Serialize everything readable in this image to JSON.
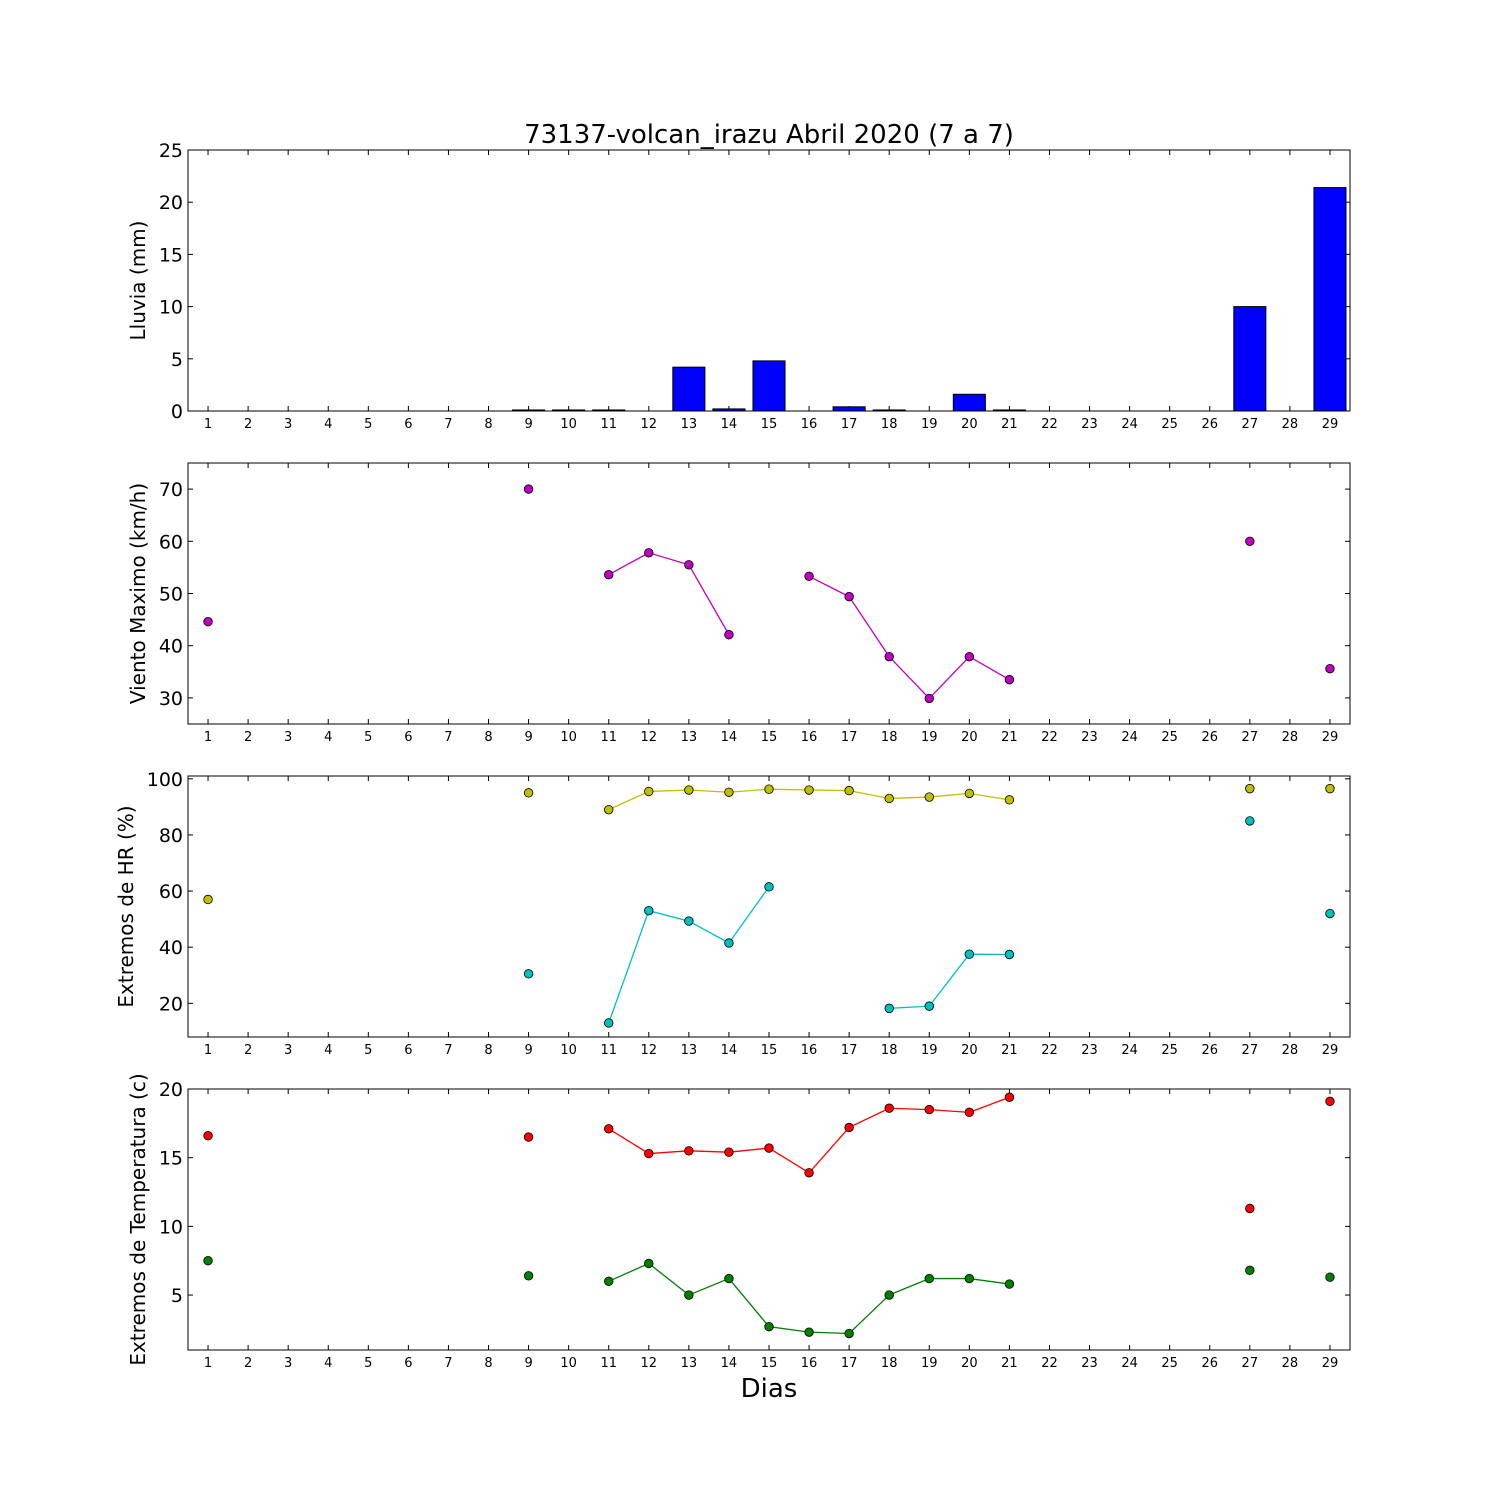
{
  "title": "73137-volcan_irazu Abril 2020  (7 a 7)",
  "x_axis_label": "Dias",
  "chart_data": [
    {
      "type": "bar",
      "ylabel": "Lluvia (mm)",
      "ylim": [
        0,
        25
      ],
      "yticks": [
        0,
        5,
        10,
        15,
        20,
        25
      ],
      "xticks": [
        1,
        2,
        3,
        4,
        5,
        6,
        7,
        8,
        9,
        10,
        11,
        12,
        13,
        14,
        15,
        16,
        17,
        18,
        19,
        20,
        21,
        22,
        23,
        24,
        25,
        26,
        27,
        28,
        29
      ],
      "series": [
        {
          "name": "",
          "color": "#0000ff",
          "points": [
            [
              1,
              0
            ],
            [
              2,
              0
            ],
            [
              3,
              0
            ],
            [
              4,
              0
            ],
            [
              5,
              0
            ],
            [
              6,
              0
            ],
            [
              7,
              0
            ],
            [
              8,
              0
            ],
            [
              9,
              0.1
            ],
            [
              10,
              0.1
            ],
            [
              11,
              0.1
            ],
            [
              12,
              0
            ],
            [
              13,
              4.2
            ],
            [
              14,
              0.2
            ],
            [
              15,
              4.8
            ],
            [
              16,
              0
            ],
            [
              17,
              0.4
            ],
            [
              18,
              0.1
            ],
            [
              19,
              0
            ],
            [
              20,
              1.6
            ],
            [
              21,
              0.1
            ],
            [
              22,
              0
            ],
            [
              23,
              0
            ],
            [
              24,
              0
            ],
            [
              25,
              0
            ],
            [
              26,
              0
            ],
            [
              27,
              10.0
            ],
            [
              28,
              0
            ],
            [
              29,
              21.4
            ]
          ]
        }
      ]
    },
    {
      "type": "line",
      "ylabel": "Viento Maximo (km/h)",
      "ylim": [
        25,
        75
      ],
      "yticks": [
        30,
        40,
        50,
        60,
        70
      ],
      "xticks": [
        1,
        2,
        3,
        4,
        5,
        6,
        7,
        8,
        9,
        10,
        11,
        12,
        13,
        14,
        15,
        16,
        17,
        18,
        19,
        20,
        21,
        22,
        23,
        24,
        25,
        26,
        27,
        28,
        29
      ],
      "series": [
        {
          "name": "",
          "color": "#bf00bf",
          "segments": [
            [
              [
                1,
                44.6
              ]
            ],
            [
              [
                9,
                70.0
              ]
            ],
            [
              [
                11,
                53.6
              ],
              [
                12,
                57.8
              ],
              [
                13,
                55.5
              ],
              [
                14,
                42.1
              ]
            ],
            [
              [
                16,
                53.3
              ],
              [
                17,
                49.4
              ],
              [
                18,
                37.9
              ],
              [
                19,
                29.9
              ],
              [
                20,
                37.9
              ],
              [
                21,
                33.5
              ]
            ],
            [
              [
                27,
                60.0
              ]
            ],
            [
              [
                29,
                35.6
              ]
            ]
          ]
        }
      ]
    },
    {
      "type": "line",
      "ylabel": "Extremos de HR (%)",
      "ylim": [
        8,
        101
      ],
      "yticks": [
        20,
        40,
        60,
        80,
        100
      ],
      "xticks": [
        1,
        2,
        3,
        4,
        5,
        6,
        7,
        8,
        9,
        10,
        11,
        12,
        13,
        14,
        15,
        16,
        17,
        18,
        19,
        20,
        21,
        22,
        23,
        24,
        25,
        26,
        27,
        28,
        29
      ],
      "series": [
        {
          "name": "",
          "color": "#bfbf00",
          "segments": [
            [
              [
                1,
                57.0
              ]
            ],
            [
              [
                9,
                95.0
              ]
            ],
            [
              [
                11,
                89.0
              ],
              [
                12,
                95.5
              ],
              [
                13,
                96.0
              ],
              [
                14,
                95.2
              ],
              [
                15,
                96.3
              ],
              [
                16,
                96.0
              ],
              [
                17,
                95.8
              ],
              [
                18,
                93.0
              ],
              [
                19,
                93.5
              ],
              [
                20,
                94.8
              ],
              [
                21,
                92.5
              ]
            ],
            [
              [
                27,
                96.5
              ]
            ],
            [
              [
                29,
                96.5
              ]
            ]
          ]
        },
        {
          "name": "",
          "color": "#00bfbf",
          "segments": [
            [
              [
                9,
                30.5
              ]
            ],
            [
              [
                11,
                13.0
              ],
              [
                12,
                53.0
              ],
              [
                13,
                49.3
              ],
              [
                14,
                41.5
              ],
              [
                15,
                61.5
              ]
            ],
            [
              [
                18,
                18.2
              ],
              [
                19,
                19.0
              ],
              [
                20,
                37.5
              ],
              [
                21,
                37.4
              ]
            ],
            [
              [
                27,
                85.0
              ]
            ],
            [
              [
                29,
                52.0
              ]
            ]
          ]
        }
      ]
    },
    {
      "type": "line",
      "ylabel": "Extremos de Temperatura (c)",
      "ylim": [
        1,
        20
      ],
      "yticks": [
        5,
        10,
        15,
        20
      ],
      "xticks": [
        1,
        2,
        3,
        4,
        5,
        6,
        7,
        8,
        9,
        10,
        11,
        12,
        13,
        14,
        15,
        16,
        17,
        18,
        19,
        20,
        21,
        22,
        23,
        24,
        25,
        26,
        27,
        28,
        29
      ],
      "series": [
        {
          "name": "",
          "color": "#ff0000",
          "segments": [
            [
              [
                1,
                16.6
              ]
            ],
            [
              [
                9,
                16.5
              ]
            ],
            [
              [
                11,
                17.1
              ],
              [
                12,
                15.3
              ],
              [
                13,
                15.5
              ],
              [
                14,
                15.4
              ],
              [
                15,
                15.7
              ],
              [
                16,
                13.9
              ],
              [
                17,
                17.2
              ],
              [
                18,
                18.6
              ],
              [
                19,
                18.5
              ],
              [
                20,
                18.3
              ],
              [
                21,
                19.4
              ]
            ],
            [
              [
                27,
                11.3
              ]
            ],
            [
              [
                29,
                19.1
              ]
            ]
          ]
        },
        {
          "name": "",
          "color": "#007f00",
          "segments": [
            [
              [
                1,
                7.5
              ]
            ],
            [
              [
                9,
                6.4
              ]
            ],
            [
              [
                11,
                6.0
              ],
              [
                12,
                7.3
              ],
              [
                13,
                5.0
              ],
              [
                14,
                6.2
              ],
              [
                15,
                2.7
              ],
              [
                16,
                2.3
              ],
              [
                17,
                2.2
              ],
              [
                18,
                5.0
              ],
              [
                19,
                6.2
              ],
              [
                20,
                6.2
              ],
              [
                21,
                5.8
              ]
            ],
            [
              [
                27,
                6.8
              ]
            ],
            [
              [
                29,
                6.3
              ]
            ]
          ]
        }
      ]
    }
  ]
}
